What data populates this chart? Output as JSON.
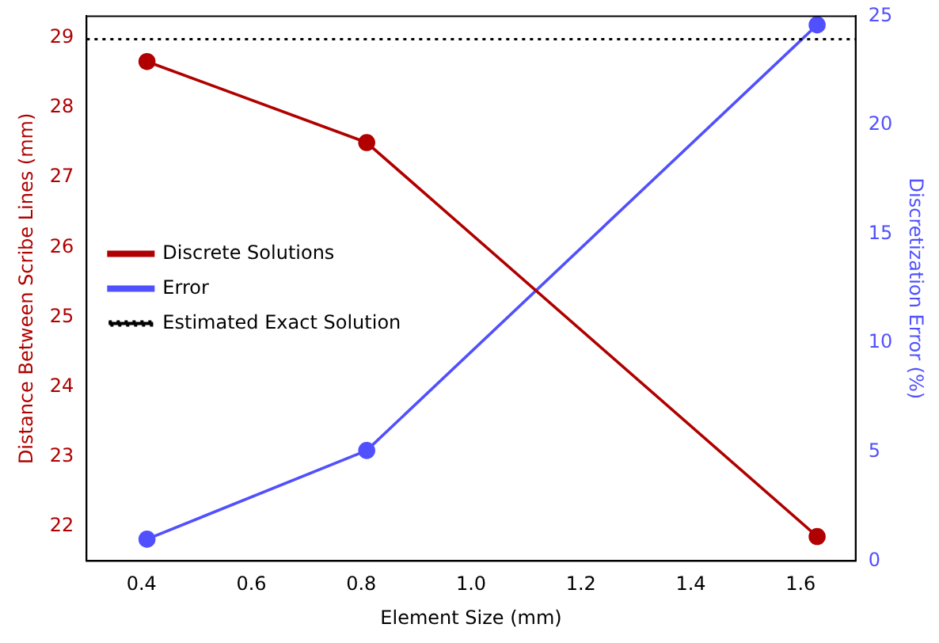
{
  "chart_data": {
    "type": "line",
    "xlabel": "Element Size (mm)",
    "ylabel": "Distance Between Scribe Lines (mm)",
    "y2label": "Discretization Error (%)",
    "x": [
      0.41,
      0.81,
      1.63
    ],
    "series": [
      {
        "name": "Discrete Solutions",
        "color": "#b00000",
        "values": [
          28.66,
          27.5,
          21.86
        ]
      },
      {
        "name": "Error",
        "color": "#5050ff",
        "values": [
          1.0,
          5.07,
          24.6
        ],
        "axis": "y2"
      }
    ],
    "ref_lines": [
      {
        "axis": "y",
        "value": 28.98,
        "label": "Estimated Exact Solution",
        "color": "#000000",
        "line_style": "dotted"
      }
    ],
    "xlim": [
      0.3,
      1.7
    ],
    "xticks": [
      {
        "value": 0.4,
        "label": "0.4"
      },
      {
        "value": 0.6,
        "label": "0.6"
      },
      {
        "value": 0.8,
        "label": "0.8"
      },
      {
        "value": 1.0,
        "label": "1.0"
      },
      {
        "value": 1.2,
        "label": "1.2"
      },
      {
        "value": 1.4,
        "label": "1.4"
      },
      {
        "value": 1.6,
        "label": "1.6"
      }
    ],
    "ylim": [
      21.51,
      29.31
    ],
    "yticks": [
      22,
      23,
      24,
      25,
      26,
      27,
      28,
      29
    ],
    "y2lim": [
      0,
      25
    ],
    "y2ticks": [
      0,
      5,
      10,
      15,
      20,
      25
    ],
    "legend": "left",
    "marker": "circle",
    "line_style": "solid",
    "grid": false
  }
}
